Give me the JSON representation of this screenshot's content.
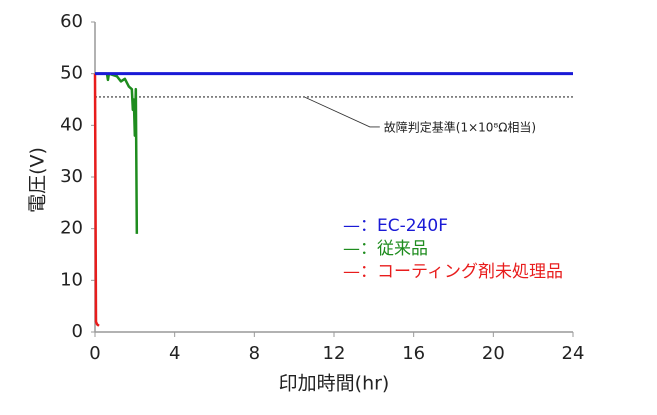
{
  "chart_data": {
    "type": "line",
    "xlabel": "印加時間(hr)",
    "ylabel": "電圧(V)",
    "xlim": [
      0,
      24
    ],
    "xticks": [
      0,
      4,
      8,
      12,
      16,
      20,
      24
    ],
    "ylim": [
      0,
      60
    ],
    "yticks": [
      0,
      10,
      20,
      30,
      40,
      50,
      60
    ],
    "grid": false,
    "legend_marker": "—：",
    "threshold": 45.5,
    "annotation": "故障判定基準(1×10⁸Ω相当)",
    "series": [
      {
        "name": "EC-240F",
        "color": "#1a1ad6",
        "x": [
          0,
          24
        ],
        "values": [
          50,
          50
        ]
      },
      {
        "name": "従来品",
        "color": "#1e8c1e",
        "x": [
          0,
          0.6,
          0.65,
          0.7,
          1.1,
          1.3,
          1.5,
          1.7,
          1.85,
          1.9,
          1.95,
          2.0,
          2.05,
          2.1
        ],
        "values": [
          50,
          50,
          48.8,
          50,
          49.5,
          48.5,
          49,
          47.5,
          47,
          43,
          45,
          38,
          47,
          19
        ]
      },
      {
        "name": "コーティング剤未処理品",
        "color": "#e81c1c",
        "x": [
          0,
          0.05,
          0.1,
          0.2
        ],
        "values": [
          50,
          2,
          1.5,
          1.2
        ]
      }
    ]
  }
}
